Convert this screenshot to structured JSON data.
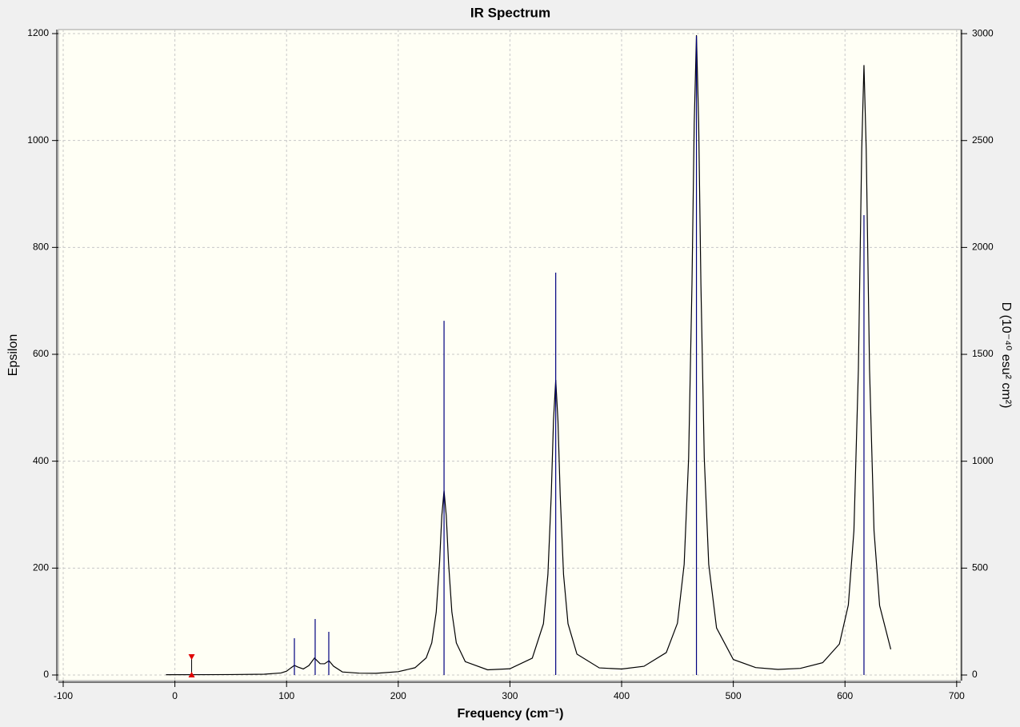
{
  "chart_data": {
    "type": "line",
    "title": "IR Spectrum",
    "x_label": "Frequency (cm⁻¹)",
    "y_label": "Epsilon",
    "y2_label": "D (10⁻⁴⁰ esu² cm²)",
    "xlim": [
      -104.3,
      703.7
    ],
    "xticks": [
      -100,
      0,
      100,
      200,
      300,
      400,
      500,
      600,
      700
    ],
    "ylim": [
      -10.5,
      1207.5
    ],
    "yticks": [
      0,
      200,
      400,
      600,
      800,
      1000,
      1200
    ],
    "y2lim": [
      -26.2,
      3019
    ],
    "y2ticks": [
      0,
      500,
      1000,
      1500,
      2000,
      2500,
      3000
    ],
    "grid": true,
    "cursor_x": 15,
    "series": [
      {
        "type": "line",
        "color": "#000000",
        "x": [
          -8,
          20,
          50,
          80,
          95,
          100,
          104,
          107,
          110,
          115,
          120,
          125,
          130,
          134,
          138,
          142,
          150,
          165,
          180,
          200,
          215,
          225,
          230,
          234,
          237,
          239,
          241,
          243,
          245,
          248,
          252,
          260,
          280,
          300,
          320,
          330,
          334,
          337,
          339,
          341,
          343,
          345,
          348,
          352,
          360,
          380,
          400,
          420,
          440,
          450,
          456,
          460,
          463,
          465,
          467,
          469,
          471,
          474,
          478,
          485,
          500,
          520,
          540,
          560,
          580,
          595,
          603,
          608,
          612,
          615,
          617,
          619,
          622,
          626,
          631,
          641
        ],
        "values": [
          0.5,
          0.6,
          0.8,
          1.5,
          3.8,
          7.1,
          13.5,
          18,
          15,
          11.3,
          17.7,
          31.7,
          21.2,
          21,
          26.7,
          16.6,
          5.7,
          3.4,
          3.1,
          6.2,
          13.6,
          32,
          60,
          117.6,
          211,
          298,
          345,
          298,
          211,
          118,
          60,
          25,
          9.7,
          11.7,
          31.5,
          96,
          188,
          337,
          476,
          552,
          476,
          337,
          188,
          96,
          39,
          13.3,
          11.2,
          16.3,
          42,
          97,
          207,
          406,
          731,
          1032,
          1197,
          1032,
          731,
          406,
          207,
          88,
          29,
          13.9,
          10.4,
          12.4,
          23,
          58,
          131,
          270,
          571,
          984,
          1141,
          984,
          571,
          270,
          130,
          48
        ]
      },
      {
        "type": "stem",
        "color": "#00007f",
        "axis": "y2",
        "x": [
          107,
          125.6,
          137.8,
          241,
          341,
          467,
          617
        ],
        "values": [
          172,
          262,
          202,
          1657,
          1882,
          2989,
          2151
        ]
      }
    ]
  }
}
